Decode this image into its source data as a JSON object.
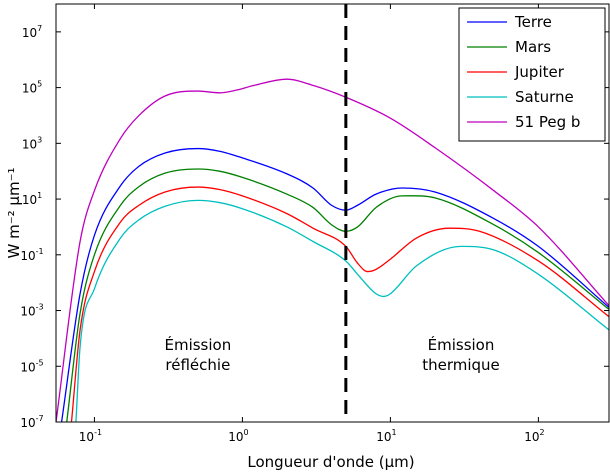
{
  "chart_data": {
    "type": "line",
    "xlabel": "Longueur d'onde (μm)",
    "ylabel": "W m⁻² μm⁻¹",
    "x_scale": "log",
    "y_scale": "log",
    "xlim": [
      0.055,
      300
    ],
    "ylim": [
      1e-07,
      100000000.0
    ],
    "x_ticks": [
      {
        "value": 0.1,
        "base": "10",
        "exp": "-1"
      },
      {
        "value": 1,
        "base": "10",
        "exp": "0"
      },
      {
        "value": 10,
        "base": "10",
        "exp": "1"
      },
      {
        "value": 100,
        "base": "10",
        "exp": "2"
      }
    ],
    "y_ticks": [
      {
        "value": 1e-07,
        "base": "10",
        "exp": "-7"
      },
      {
        "value": 1e-05,
        "base": "10",
        "exp": "-5"
      },
      {
        "value": 0.001,
        "base": "10",
        "exp": "-3"
      },
      {
        "value": 0.1,
        "base": "10",
        "exp": "-1"
      },
      {
        "value": 10,
        "base": "10",
        "exp": "1"
      },
      {
        "value": 1000,
        "base": "10",
        "exp": "3"
      },
      {
        "value": 100000,
        "base": "10",
        "exp": "5"
      },
      {
        "value": 10000000,
        "base": "10",
        "exp": "7"
      }
    ],
    "vline": {
      "x": 5,
      "style": "dashed",
      "color": "#000000"
    },
    "annotations": [
      {
        "lines": [
          "Émission",
          "réfléchie"
        ],
        "x": 0.5,
        "y": 2e-05
      },
      {
        "lines": [
          "Émission",
          "thermique"
        ],
        "x": 30,
        "y": 2e-05
      }
    ],
    "legend": {
      "position": "top-right"
    },
    "series": [
      {
        "name": "Terre",
        "color": "#0000ff",
        "points": [
          [
            0.06,
            1e-07
          ],
          [
            0.08,
            0.004
          ],
          [
            0.1,
            0.5
          ],
          [
            0.15,
            30
          ],
          [
            0.2,
            150
          ],
          [
            0.3,
            450
          ],
          [
            0.5,
            650
          ],
          [
            0.7,
            520
          ],
          [
            1,
            300
          ],
          [
            2,
            80
          ],
          [
            3,
            25
          ],
          [
            4,
            6
          ],
          [
            5,
            4
          ],
          [
            6,
            6
          ],
          [
            8,
            15
          ],
          [
            12,
            25
          ],
          [
            20,
            18
          ],
          [
            50,
            2
          ],
          [
            100,
            0.2
          ],
          [
            300,
            0.0013
          ]
        ]
      },
      {
        "name": "Mars",
        "color": "#008000",
        "points": [
          [
            0.065,
            1e-07
          ],
          [
            0.08,
            0.0008
          ],
          [
            0.1,
            0.1
          ],
          [
            0.15,
            6
          ],
          [
            0.2,
            28
          ],
          [
            0.3,
            85
          ],
          [
            0.5,
            120
          ],
          [
            0.7,
            100
          ],
          [
            1,
            60
          ],
          [
            2,
            15
          ],
          [
            3,
            5
          ],
          [
            4,
            1.2
          ],
          [
            5,
            0.7
          ],
          [
            6,
            1
          ],
          [
            8,
            5
          ],
          [
            12,
            13
          ],
          [
            20,
            11
          ],
          [
            50,
            1.2
          ],
          [
            100,
            0.12
          ],
          [
            300,
            0.0011
          ]
        ]
      },
      {
        "name": "Jupiter",
        "color": "#ff0000",
        "points": [
          [
            0.07,
            1e-07
          ],
          [
            0.08,
            0.0002
          ],
          [
            0.1,
            0.025
          ],
          [
            0.15,
            1.5
          ],
          [
            0.2,
            6
          ],
          [
            0.3,
            18
          ],
          [
            0.5,
            27
          ],
          [
            0.7,
            22
          ],
          [
            1,
            13
          ],
          [
            2,
            3
          ],
          [
            3,
            0.9
          ],
          [
            5,
            0.2
          ],
          [
            6,
            0.05
          ],
          [
            7,
            0.025
          ],
          [
            8,
            0.03
          ],
          [
            10,
            0.07
          ],
          [
            15,
            0.4
          ],
          [
            25,
            0.9
          ],
          [
            40,
            0.7
          ],
          [
            100,
            0.06
          ],
          [
            300,
            0.0006
          ]
        ]
      },
      {
        "name": "Saturne",
        "color": "#00bfbf",
        "points": [
          [
            0.075,
            1e-07
          ],
          [
            0.08,
            5e-05
          ],
          [
            0.1,
            0.006
          ],
          [
            0.15,
            0.4
          ],
          [
            0.2,
            1.8
          ],
          [
            0.3,
            5.5
          ],
          [
            0.5,
            9
          ],
          [
            0.7,
            7.5
          ],
          [
            1,
            4.5
          ],
          [
            2,
            1
          ],
          [
            3,
            0.3
          ],
          [
            5,
            0.06
          ],
          [
            6,
            0.02
          ],
          [
            8,
            0.004
          ],
          [
            9,
            0.0032
          ],
          [
            10,
            0.004
          ],
          [
            15,
            0.04
          ],
          [
            30,
            0.2
          ],
          [
            50,
            0.15
          ],
          [
            100,
            0.02
          ],
          [
            300,
            0.0002
          ]
        ]
      },
      {
        "name": "51 Peg b",
        "color": "#bf00bf",
        "points": [
          [
            0.055,
            1e-07
          ],
          [
            0.08,
            0.3
          ],
          [
            0.1,
            20
          ],
          [
            0.15,
            1500
          ],
          [
            0.2,
            10000
          ],
          [
            0.3,
            50000
          ],
          [
            0.5,
            75000
          ],
          [
            0.7,
            65000
          ],
          [
            0.9,
            80000
          ],
          [
            1.2,
            120000
          ],
          [
            2,
            200000
          ],
          [
            3,
            120000
          ],
          [
            5,
            45000
          ],
          [
            10,
            8000
          ],
          [
            20,
            700
          ],
          [
            50,
            20
          ],
          [
            100,
            1
          ],
          [
            300,
            0.0015
          ]
        ]
      }
    ]
  }
}
